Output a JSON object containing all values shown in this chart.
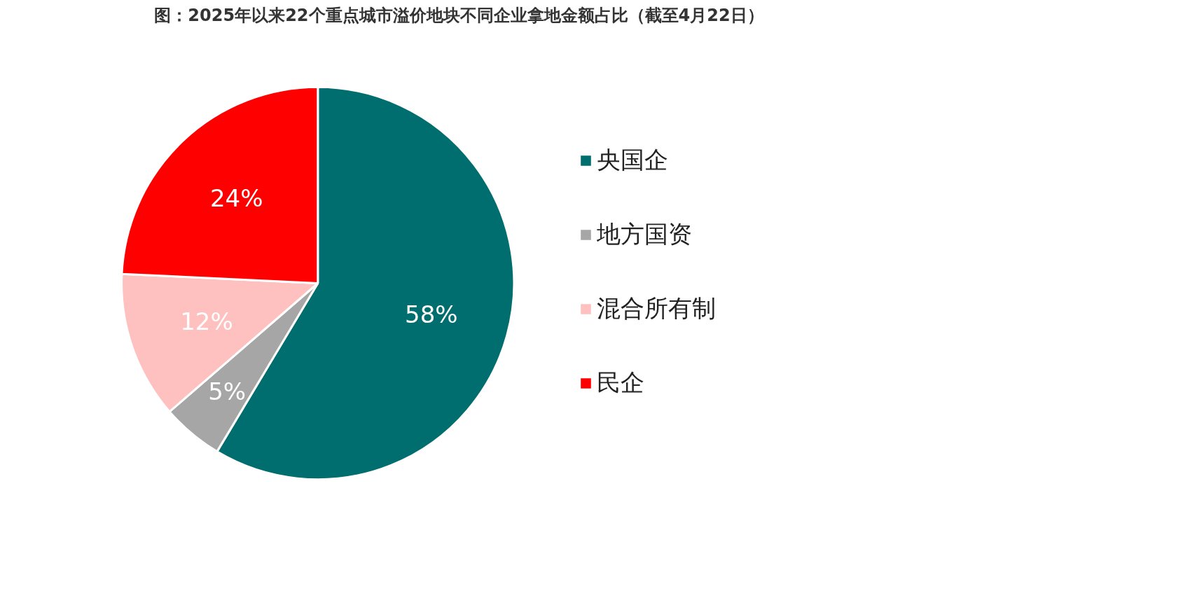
{
  "chart_data": {
    "type": "pie",
    "title": "图：2025年以来22个重点城市溢价地块不同企业拿地金额占比（截至4月22日）",
    "categories": [
      "央国企",
      "地方国资",
      "混合所有制",
      "民企"
    ],
    "values": [
      58,
      5,
      12,
      24
    ],
    "value_labels": [
      "58%",
      "5%",
      "12%",
      "24%"
    ],
    "colors": [
      "#006e6e",
      "#a6a6a6",
      "#ffc0c0",
      "#ff0000"
    ],
    "legend": "right"
  }
}
